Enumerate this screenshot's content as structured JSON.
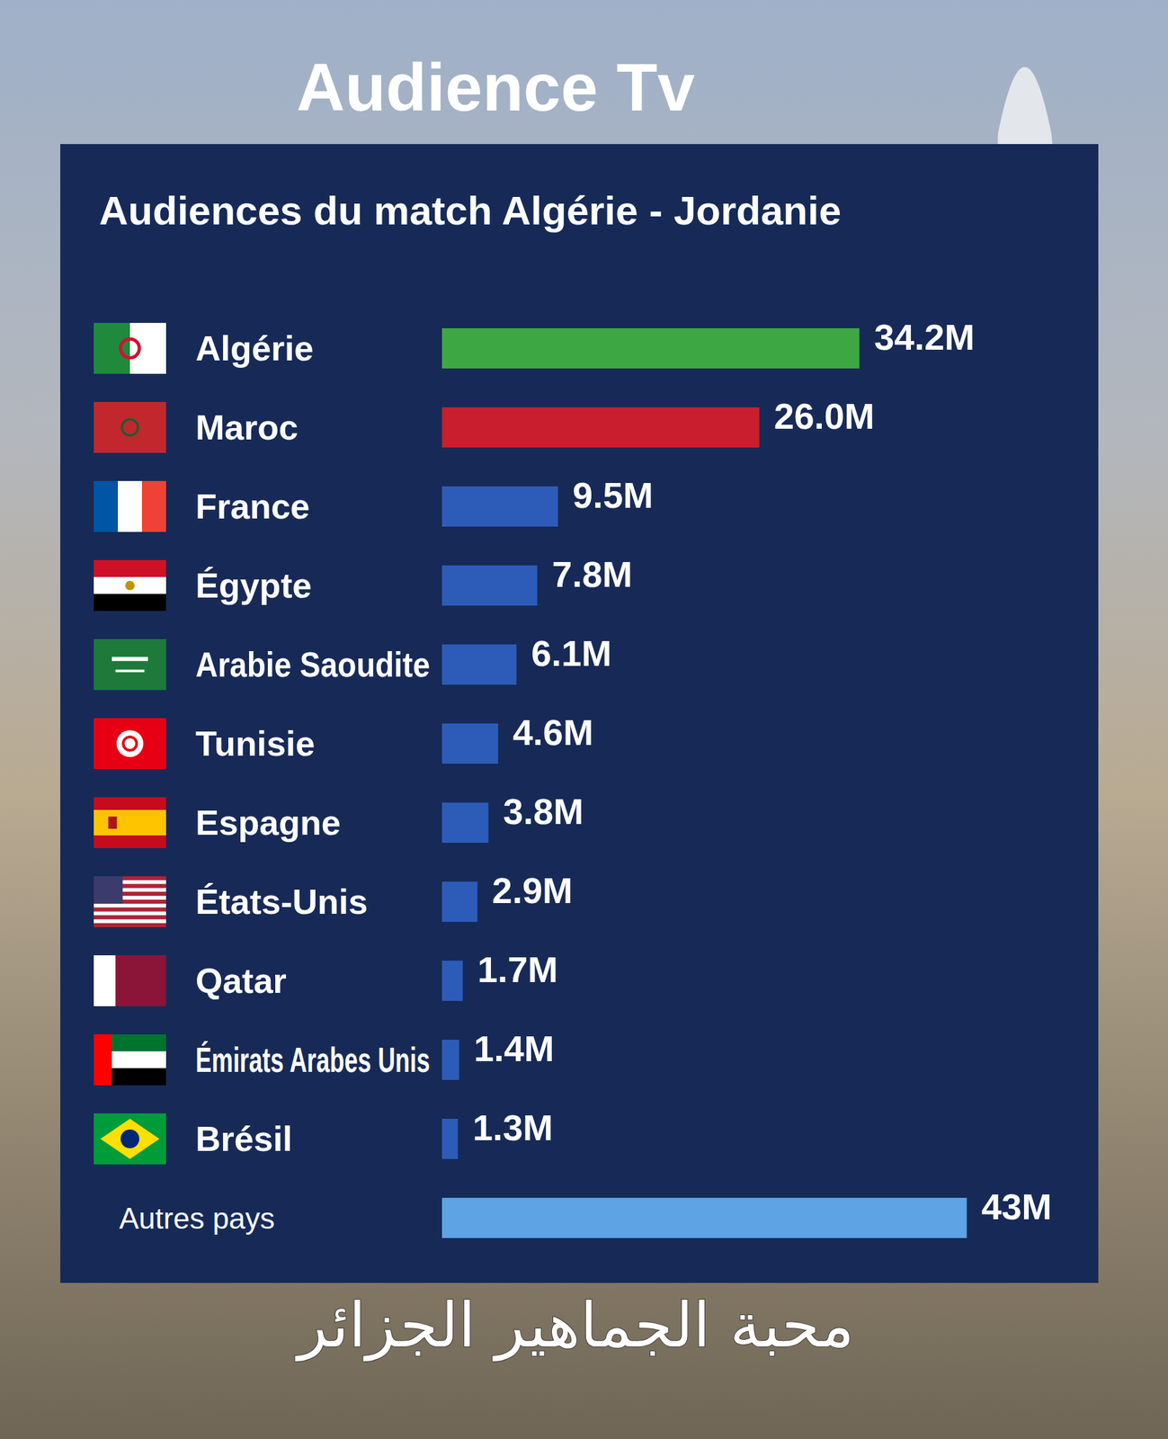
{
  "chart_data": {
    "type": "bar",
    "orientation": "horizontal",
    "title": "Audiences du match Algérie - Jordanie",
    "annotations": [
      "Audience Tv",
      "محبة الجماهير الجزائر"
    ],
    "categories": [
      "Algérie",
      "Maroc",
      "France",
      "Égypte",
      "Arabie Saoudite",
      "Tunisie",
      "Espagne",
      "États-Unis",
      "Qatar",
      "Émirats Arabes Unis",
      "Brésil",
      "Autres pays"
    ],
    "values": [
      34.2,
      26.0,
      9.5,
      7.8,
      6.1,
      4.6,
      3.8,
      2.9,
      1.7,
      1.4,
      1.3,
      43
    ],
    "value_labels": [
      "34.2M",
      "26.0M",
      "9.5M",
      "7.8M",
      "6.1M",
      "4.6M",
      "3.8M",
      "2.9M",
      "1.7M",
      "1.4M",
      "1.3M",
      "43M"
    ],
    "colors": [
      "#3da843",
      "#c81e2e",
      "#2c5cb8",
      "#2c5cb8",
      "#2c5cb8",
      "#2c5cb8",
      "#2c5cb8",
      "#2c5cb8",
      "#2c5cb8",
      "#2c5cb8",
      "#2c5cb8",
      "#5ea3e3"
    ],
    "xlim": [
      0,
      45
    ],
    "grid": false,
    "data_labels": true,
    "tick_labels": "y"
  }
}
